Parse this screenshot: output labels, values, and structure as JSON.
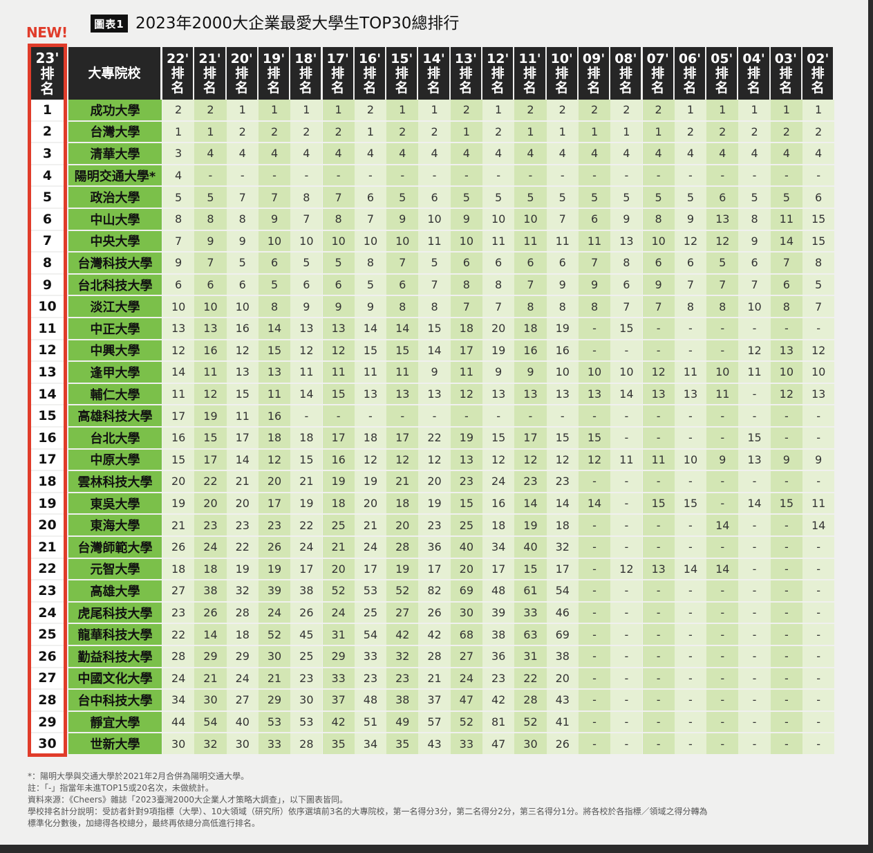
{
  "title": {
    "badge": "圖表1",
    "text": "2023年2000大企業最愛大學生TOP30總排行",
    "new_label": "NEW!"
  },
  "colors": {
    "header_bg": "#262626",
    "school_bg": "#7bc04a",
    "band_a": "#e6f0d4",
    "band_b": "#d3e6b4",
    "highlight_frame": "#e03c2a"
  },
  "chart_data": {
    "type": "table",
    "rank_header": [
      "23'",
      "排",
      "名"
    ],
    "school_header": "大專院校",
    "year_columns": [
      "22'",
      "21'",
      "20'",
      "19'",
      "18'",
      "17'",
      "16'",
      "15'",
      "14'",
      "13'",
      "12'",
      "11'",
      "10'",
      "09'",
      "08'",
      "07'",
      "06'",
      "05'",
      "04'",
      "03'",
      "02'"
    ],
    "year_suffix": [
      "排",
      "名"
    ],
    "rows": [
      {
        "rank": "1",
        "school": "成功大學",
        "values": [
          "2",
          "2",
          "1",
          "1",
          "1",
          "1",
          "2",
          "1",
          "1",
          "2",
          "1",
          "2",
          "2",
          "2",
          "2",
          "2",
          "1",
          "1",
          "1",
          "1",
          "1"
        ]
      },
      {
        "rank": "2",
        "school": "台灣大學",
        "values": [
          "1",
          "1",
          "2",
          "2",
          "2",
          "2",
          "1",
          "2",
          "2",
          "1",
          "2",
          "1",
          "1",
          "1",
          "1",
          "1",
          "2",
          "2",
          "2",
          "2",
          "2"
        ]
      },
      {
        "rank": "3",
        "school": "清華大學",
        "values": [
          "3",
          "4",
          "4",
          "4",
          "4",
          "4",
          "4",
          "4",
          "4",
          "4",
          "4",
          "4",
          "4",
          "4",
          "4",
          "4",
          "4",
          "4",
          "4",
          "4",
          "4"
        ]
      },
      {
        "rank": "4",
        "school": "陽明交通大學*",
        "values": [
          "4",
          "-",
          "-",
          "-",
          "-",
          "-",
          "-",
          "-",
          "-",
          "-",
          "-",
          "-",
          "-",
          "-",
          "-",
          "-",
          "-",
          "-",
          "-",
          "-",
          "-"
        ]
      },
      {
        "rank": "5",
        "school": "政治大學",
        "values": [
          "5",
          "5",
          "7",
          "7",
          "8",
          "7",
          "6",
          "5",
          "6",
          "5",
          "5",
          "5",
          "5",
          "5",
          "5",
          "5",
          "5",
          "6",
          "5",
          "5",
          "6"
        ]
      },
      {
        "rank": "6",
        "school": "中山大學",
        "values": [
          "8",
          "8",
          "8",
          "9",
          "7",
          "8",
          "7",
          "9",
          "10",
          "9",
          "10",
          "10",
          "7",
          "6",
          "9",
          "8",
          "9",
          "13",
          "8",
          "11",
          "15"
        ]
      },
      {
        "rank": "7",
        "school": "中央大學",
        "values": [
          "7",
          "9",
          "9",
          "10",
          "10",
          "10",
          "10",
          "10",
          "11",
          "10",
          "11",
          "11",
          "11",
          "11",
          "13",
          "10",
          "12",
          "12",
          "9",
          "14",
          "15"
        ]
      },
      {
        "rank": "8",
        "school": "台灣科技大學",
        "values": [
          "9",
          "7",
          "5",
          "6",
          "5",
          "5",
          "8",
          "7",
          "5",
          "6",
          "6",
          "6",
          "6",
          "7",
          "8",
          "6",
          "6",
          "5",
          "6",
          "7",
          "8"
        ]
      },
      {
        "rank": "9",
        "school": "台北科技大學",
        "values": [
          "6",
          "6",
          "6",
          "5",
          "6",
          "6",
          "5",
          "6",
          "7",
          "8",
          "8",
          "7",
          "9",
          "9",
          "6",
          "9",
          "7",
          "7",
          "7",
          "6",
          "5"
        ]
      },
      {
        "rank": "10",
        "school": "淡江大學",
        "values": [
          "10",
          "10",
          "10",
          "8",
          "9",
          "9",
          "9",
          "8",
          "8",
          "7",
          "7",
          "8",
          "8",
          "8",
          "7",
          "7",
          "8",
          "8",
          "10",
          "8",
          "7"
        ]
      },
      {
        "rank": "11",
        "school": "中正大學",
        "values": [
          "13",
          "13",
          "16",
          "14",
          "13",
          "13",
          "14",
          "14",
          "15",
          "18",
          "20",
          "18",
          "19",
          "-",
          "15",
          "-",
          "-",
          "-",
          "-",
          "-",
          "-"
        ]
      },
      {
        "rank": "12",
        "school": "中興大學",
        "values": [
          "12",
          "16",
          "12",
          "15",
          "12",
          "12",
          "15",
          "15",
          "14",
          "17",
          "19",
          "16",
          "16",
          "-",
          "-",
          "-",
          "-",
          "-",
          "12",
          "13",
          "12"
        ]
      },
      {
        "rank": "13",
        "school": "逢甲大學",
        "values": [
          "14",
          "11",
          "13",
          "13",
          "11",
          "11",
          "11",
          "11",
          "9",
          "11",
          "9",
          "9",
          "10",
          "10",
          "10",
          "12",
          "11",
          "10",
          "11",
          "10",
          "10"
        ]
      },
      {
        "rank": "14",
        "school": "輔仁大學",
        "values": [
          "11",
          "12",
          "15",
          "11",
          "14",
          "15",
          "13",
          "13",
          "13",
          "12",
          "13",
          "13",
          "13",
          "13",
          "14",
          "13",
          "13",
          "11",
          "-",
          "12",
          "13"
        ]
      },
      {
        "rank": "15",
        "school": "高雄科技大學",
        "values": [
          "17",
          "19",
          "11",
          "16",
          "-",
          "-",
          "-",
          "-",
          "-",
          "-",
          "-",
          "-",
          "-",
          "-",
          "-",
          "-",
          "-",
          "-",
          "-",
          "-",
          "-"
        ]
      },
      {
        "rank": "16",
        "school": "台北大學",
        "values": [
          "16",
          "15",
          "17",
          "18",
          "18",
          "17",
          "18",
          "17",
          "22",
          "19",
          "15",
          "17",
          "15",
          "15",
          "-",
          "-",
          "-",
          "-",
          "15",
          "-",
          "-"
        ]
      },
      {
        "rank": "17",
        "school": "中原大學",
        "values": [
          "15",
          "17",
          "14",
          "12",
          "15",
          "16",
          "12",
          "12",
          "12",
          "13",
          "12",
          "12",
          "12",
          "12",
          "11",
          "11",
          "10",
          "9",
          "13",
          "9",
          "9"
        ]
      },
      {
        "rank": "18",
        "school": "雲林科技大學",
        "values": [
          "20",
          "22",
          "21",
          "20",
          "21",
          "19",
          "19",
          "21",
          "20",
          "23",
          "24",
          "23",
          "23",
          "-",
          "-",
          "-",
          "-",
          "-",
          "-",
          "-",
          "-"
        ]
      },
      {
        "rank": "19",
        "school": "東吳大學",
        "values": [
          "19",
          "20",
          "20",
          "17",
          "19",
          "18",
          "20",
          "18",
          "19",
          "15",
          "16",
          "14",
          "14",
          "14",
          "-",
          "15",
          "15",
          "-",
          "14",
          "15",
          "11"
        ]
      },
      {
        "rank": "20",
        "school": "東海大學",
        "values": [
          "21",
          "23",
          "23",
          "23",
          "22",
          "25",
          "21",
          "20",
          "23",
          "25",
          "18",
          "19",
          "18",
          "-",
          "-",
          "-",
          "-",
          "14",
          "-",
          "-",
          "14"
        ]
      },
      {
        "rank": "21",
        "school": "台灣師範大學",
        "values": [
          "26",
          "24",
          "22",
          "26",
          "24",
          "21",
          "24",
          "28",
          "36",
          "40",
          "34",
          "40",
          "32",
          "-",
          "-",
          "-",
          "-",
          "-",
          "-",
          "-",
          "-"
        ]
      },
      {
        "rank": "22",
        "school": "元智大學",
        "values": [
          "18",
          "18",
          "19",
          "19",
          "17",
          "20",
          "17",
          "19",
          "17",
          "20",
          "17",
          "15",
          "17",
          "-",
          "12",
          "13",
          "14",
          "14",
          "-",
          "-",
          "-"
        ]
      },
      {
        "rank": "23",
        "school": "高雄大學",
        "values": [
          "27",
          "38",
          "32",
          "39",
          "38",
          "52",
          "53",
          "52",
          "82",
          "69",
          "48",
          "61",
          "54",
          "-",
          "-",
          "-",
          "-",
          "-",
          "-",
          "-",
          "-"
        ]
      },
      {
        "rank": "24",
        "school": "虎尾科技大學",
        "values": [
          "23",
          "26",
          "28",
          "24",
          "26",
          "24",
          "25",
          "27",
          "26",
          "30",
          "39",
          "33",
          "46",
          "-",
          "-",
          "-",
          "-",
          "-",
          "-",
          "-",
          "-"
        ]
      },
      {
        "rank": "25",
        "school": "龍華科技大學",
        "values": [
          "22",
          "14",
          "18",
          "52",
          "45",
          "31",
          "54",
          "42",
          "42",
          "68",
          "38",
          "63",
          "69",
          "-",
          "-",
          "-",
          "-",
          "-",
          "-",
          "-",
          "-"
        ]
      },
      {
        "rank": "26",
        "school": "勤益科技大學",
        "values": [
          "28",
          "29",
          "29",
          "30",
          "25",
          "29",
          "33",
          "32",
          "28",
          "27",
          "36",
          "31",
          "38",
          "-",
          "-",
          "-",
          "-",
          "-",
          "-",
          "-",
          "-"
        ]
      },
      {
        "rank": "27",
        "school": "中國文化大學",
        "values": [
          "24",
          "21",
          "24",
          "21",
          "23",
          "33",
          "23",
          "23",
          "21",
          "24",
          "23",
          "22",
          "20",
          "-",
          "-",
          "-",
          "-",
          "-",
          "-",
          "-",
          "-"
        ]
      },
      {
        "rank": "28",
        "school": "台中科技大學",
        "values": [
          "34",
          "30",
          "27",
          "29",
          "30",
          "37",
          "48",
          "38",
          "37",
          "47",
          "42",
          "28",
          "43",
          "-",
          "-",
          "-",
          "-",
          "-",
          "-",
          "-",
          "-"
        ]
      },
      {
        "rank": "29",
        "school": "靜宜大學",
        "values": [
          "44",
          "54",
          "40",
          "53",
          "53",
          "42",
          "51",
          "49",
          "57",
          "52",
          "81",
          "52",
          "41",
          "-",
          "-",
          "-",
          "-",
          "-",
          "-",
          "-",
          "-"
        ]
      },
      {
        "rank": "30",
        "school": "世新大學",
        "values": [
          "30",
          "32",
          "30",
          "33",
          "28",
          "35",
          "34",
          "35",
          "43",
          "33",
          "47",
          "30",
          "26",
          "-",
          "-",
          "-",
          "-",
          "-",
          "-",
          "-",
          "-"
        ]
      }
    ]
  },
  "notes": [
    "*：陽明大學與交通大學於2021年2月合併為陽明交通大學。",
    "註：「-」指當年未進TOP15或20名次，未做統計。",
    "資料來源：《Cheers》雜誌「2023臺灣2000大企業人才策略大調查」，以下圖表皆同。",
    "學校排名計分說明：受訪者針對9項指標（大學）、10大領域（研究所）依序選填前3名的大專院校，第一名得分3分，第二名得分2分，第三名得分1分。將各校於各指標／領域之得分轉為",
    "標準化分數後，加總得各校總分，最終再依總分高低進行排名。"
  ]
}
